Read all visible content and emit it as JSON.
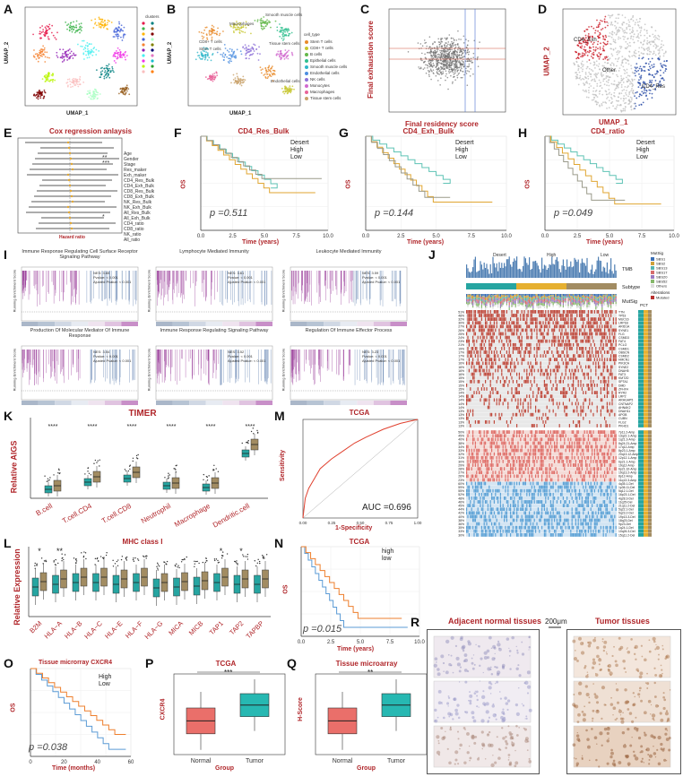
{
  "panels": {
    "A": {
      "label": "A",
      "xlabel": "UMAP_1",
      "ylabel": "UMAP_2",
      "legend_title": "clusters"
    },
    "B": {
      "label": "B",
      "xlabel": "UMAP_1",
      "ylabel": "UMAP_2",
      "legend_title": "cell_type",
      "legend": [
        "Stem T cells",
        "CD8+ T cells",
        "B cells",
        "Epithelial cells",
        "Smooth muscle cells",
        "Endothelial cells",
        "NK cells",
        "Monocytes",
        "Macrophages",
        "Tissue stem cells"
      ],
      "cluster_labels": [
        "Macrophages",
        "Smooth muscle cells",
        "CD8+ T cells",
        "Stem T cells",
        "Tissue stem cells",
        "Endothelial cells"
      ]
    },
    "C": {
      "label": "C",
      "xlabel": "Final residency score",
      "ylabel": "Final exhaustion score"
    },
    "D": {
      "label": "D",
      "xlabel": "UMAP_1",
      "ylabel": "UMAP_2",
      "groups": [
        "CD4_Exh",
        "Other",
        "CD4_Res"
      ]
    },
    "E": {
      "label": "E",
      "title": "Cox regression anlaysis",
      "xlabel": "Hazard ratio",
      "rows": [
        "Age",
        "Gender",
        "Stage",
        "Res_maker",
        "Exh_maker",
        "CD4_Res_Bulk",
        "CD4_Exh_Bulk",
        "CD8_Res_Bulk",
        "CD8_Exh_Bulk",
        "NK_Res_Bulk",
        "NK_Exh_Bulk",
        "All_Res_Bulk",
        "All_Exh_Bulk",
        "CD4_ratio",
        "CD8_ratio",
        "NK_ratio",
        "All_ratio"
      ],
      "sig": [
        "**",
        "***",
        "*"
      ]
    },
    "F": {
      "label": "F",
      "title": "CD4_Res_Bulk",
      "pval": "p =0.511"
    },
    "G": {
      "label": "G",
      "title": "CD4_Exh_Bulk",
      "pval": "p =0.144"
    },
    "H": {
      "label": "H",
      "title": "CD4_ratio",
      "pval": "p =0.049"
    },
    "km_common": {
      "ylabel": "OS",
      "xlabel": "Time (years)",
      "legend": [
        "Desert",
        "High",
        "Low"
      ],
      "xticks": [
        "0.0",
        "2.5",
        "5.0",
        "7.5",
        "10.0"
      ]
    },
    "I": {
      "label": "I",
      "ylabel": "Running Enrichment Score",
      "gsea": [
        {
          "title": "Immune Response Regulating Cell Surface Receptor Signaling Pathway",
          "nes": "NES: 3.65",
          "p": "Pvalue: < 0.001",
          "padj": "Ajusted Pvalue: < 0.001"
        },
        {
          "title": "Lymphocyte Mediated Immunity",
          "nes": "NES: 3.61",
          "p": "Pvalue: < 0.001",
          "padj": "Ajusted Pvalue: < 0.001"
        },
        {
          "title": "Leukocyte Mediated Immunity",
          "nes": "NES: 3.59",
          "p": "Pvalue: < 0.001",
          "padj": "Ajusted Pvalue: < 0.001"
        },
        {
          "title": "Production Of Molecular Mediator Of Immune Response",
          "nes": "NES: 3.54",
          "p": "Pvalue: < 0.001",
          "padj": "Ajusted Pvalue: < 0.001"
        },
        {
          "title": "Immune Response Regulating Signaling Pathway",
          "nes": "NES: 3.52",
          "p": "Pvalue: < 0.001",
          "padj": "Ajusted Pvalue: < 0.001"
        },
        {
          "title": "Regulation Of Immune Effector Process",
          "nes": "NES: 3.23",
          "p": "Pvalue: < 0.001",
          "padj": "Ajusted Pvalue: < 0.001"
        }
      ]
    },
    "J": {
      "label": "J",
      "groups": [
        "Desert",
        "High",
        "Low"
      ],
      "tracks": [
        "TMB",
        "Subtype",
        "MutSig"
      ],
      "legend_mutsig_title": "MutSig",
      "legend_mutsig": [
        "SBS1",
        "SBS2",
        "SBS13",
        "SBS17",
        "SBS20",
        "SBS52",
        "Others"
      ],
      "legend_alt_title": "Alterations",
      "legend_alt": [
        "Mutated"
      ],
      "pct_label": "PCT",
      "genes": [
        "TTN",
        "TP53",
        "MUC16",
        "LRP1B",
        "ARID1A",
        "SYNE1",
        "FLG",
        "CSMD3",
        "FAT4",
        "PCLO",
        "CSMD1",
        "OBSCN",
        "CSMD2",
        "HMCN1",
        "PIK3CA",
        "SYNE2",
        "DNAH5",
        "FAT3",
        "KMT2D",
        "SPTA1",
        "DMD",
        "ZFHX4",
        "RYR2",
        "LRP2",
        "ARHGAP5",
        "CNTNAP2",
        "AHNAK2",
        "DNAH11",
        "APOB",
        "CUBN",
        "FLG2",
        "PKHD1"
      ],
      "genes_pct": [
        "51%",
        "48%",
        "32%",
        "30%",
        "27%",
        "26%",
        "25%",
        "24%",
        "23%",
        "21%",
        "19%",
        "17%",
        "17%",
        "17%",
        "16%",
        "16%",
        "16%",
        "16%",
        "15%",
        "15%",
        "15%",
        "15%",
        "14%",
        "14%",
        "14%",
        "14%",
        "14%",
        "13%",
        "13%",
        "13%",
        "13%",
        "13%"
      ],
      "cnv": [
        "7p11.2-Amp",
        "13q22.1-Amp",
        "1q21.3-Amp",
        "8q24.21-Amp",
        "17q12-Amp",
        "8p23.1-Amp",
        "20q13.12-Amp",
        "12p12.1-Amp",
        "6p21.1-Amp",
        "19q12-Amp",
        "6p21.32-Amp",
        "19q13.2-Amp",
        "8p12-Amp",
        "11q13.3-Amp",
        "4q35.1-Del",
        "1p36.11-Del",
        "5q12.1-Del",
        "16p23.1-Del",
        "4q28.3-Del",
        "11q25-Del",
        "21q11.2-Del",
        "5q22.1-Del",
        "5q23.2-Del",
        "19p13.3-Del",
        "18q23-Del",
        "9p23-Del",
        "1q24.1-Del",
        "10q26.3-Del",
        "15q11.2-Del"
      ],
      "cnv_pct": [
        "50%",
        "45%",
        "40%",
        "38%",
        "34%",
        "33%",
        "32%",
        "31%",
        "30%",
        "29%",
        "28%",
        "27%",
        "26%",
        "23%",
        "60%",
        "59%",
        "55%",
        "52%",
        "48%",
        "46%",
        "45%",
        "44%",
        "42%",
        "40%",
        "38%",
        "36%",
        "35%",
        "33%",
        "30%"
      ]
    },
    "K": {
      "label": "K",
      "title": "TIMER",
      "ylabel": "Relative AIGS",
      "categories": [
        "B.cell",
        "T.cell.CD4",
        "T.cell.CD8",
        "Neutrophil",
        "Macrophage",
        "Dendritic.cell"
      ],
      "sig": [
        "****",
        "****",
        "****",
        "****",
        "****",
        "****"
      ]
    },
    "L": {
      "label": "L",
      "title": "MHC class I",
      "ylabel": "Relative Expression",
      "categories": [
        "B2M",
        "HLA−A",
        "HLA−B",
        "HLA−C",
        "HLA−E",
        "HLA−F",
        "HLA−G",
        "MICA",
        "MICB",
        "TAP1",
        "TAP2",
        "TAPBP"
      ],
      "sig": [
        "*",
        "**",
        "",
        "",
        "",
        "",
        "",
        "",
        "",
        "*",
        "*",
        ""
      ]
    },
    "M": {
      "label": "M",
      "title": "TCGA",
      "xlabel": "1-Specificity",
      "ylabel": "Sensitivity",
      "auc": "AUC =0.696",
      "xticks": [
        "0.00",
        "0.25",
        "0.50",
        "0.75",
        "1.00"
      ]
    },
    "N": {
      "label": "N",
      "title": "TCGA",
      "ylabel": "OS",
      "xlabel": "Time (years)",
      "legend": [
        "high",
        "low"
      ],
      "pval": "p =0.015",
      "xticks": [
        "0.0",
        "2.5",
        "5.0",
        "7.5",
        "10.0"
      ]
    },
    "O": {
      "label": "O",
      "title": "Tissue microrray CXCR4",
      "ylabel": "OS",
      "xlabel": "Time (months)",
      "legend": [
        "High",
        "Low"
      ],
      "pval": "p =0.038",
      "xticks": [
        "0",
        "20",
        "40",
        "60"
      ]
    },
    "P": {
      "label": "P",
      "title": "TCGA",
      "ylabel": "CXCR4",
      "xlabel": "Group",
      "groups": [
        "Normal",
        "Tumor"
      ],
      "sig": "***"
    },
    "Q": {
      "label": "Q",
      "title": "Tissue microarray",
      "ylabel": "H-Score",
      "xlabel": "Group",
      "groups": [
        "Normal",
        "Tumor"
      ],
      "sig": "**"
    },
    "R": {
      "label": "R",
      "left_title": "Adjacent normal tissues",
      "scale": "200μm",
      "right_title": "Tumor tissues"
    }
  },
  "colors": {
    "dark_red": "#b0262a",
    "desert": "#5fc3b5",
    "high": "#e0a632",
    "low": "#9a9a8a",
    "teal": "#26a5a1",
    "tan": "#a28c62",
    "orange": "#ee7f2d",
    "blue": "#5b9bd5",
    "normal_box": "#ea6f6a",
    "tumor_box": "#27b8b2",
    "purple": "#8a2a8a"
  },
  "chart_data": [
    {
      "type": "scatter",
      "panel": "C",
      "xlabel": "Final residency score",
      "ylabel": "Final exhaustion score",
      "description_points": "dense gray cloud"
    },
    {
      "type": "line",
      "panel": "F",
      "title": "CD4_Res_Bulk",
      "series": [
        {
          "name": "Desert"
        },
        {
          "name": "High"
        },
        {
          "name": "Low"
        }
      ]
    },
    {
      "type": "line",
      "panel": "M",
      "title": "TCGA",
      "xlabel": "1-Specificity",
      "ylabel": "Sensitivity",
      "auc": 0.696
    },
    {
      "type": "bar",
      "panel": "P",
      "title": "TCGA",
      "categories": [
        "Normal",
        "Tumor"
      ],
      "medians": [
        -1.2,
        0.2
      ],
      "ylim": [
        -4,
        3
      ]
    },
    {
      "type": "bar",
      "panel": "Q",
      "title": "Tissue microarray",
      "categories": [
        "Normal",
        "Tumor"
      ],
      "medians": [
        23,
        31
      ],
      "ylim": [
        0,
        100
      ]
    }
  ]
}
